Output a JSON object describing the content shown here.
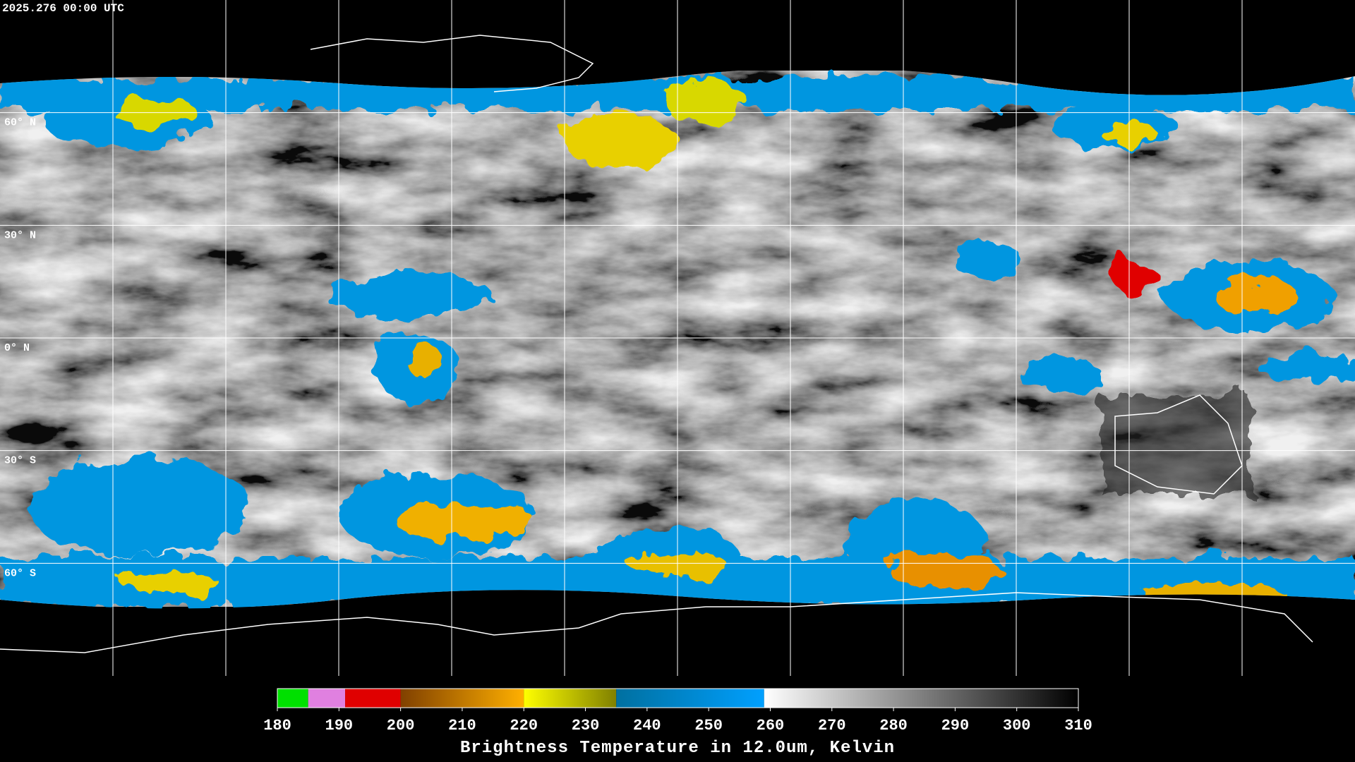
{
  "header": {
    "timestamp": "2025.276 00:00 UTC"
  },
  "map": {
    "lat_lines": [
      {
        "value": 60,
        "label": "60° N"
      },
      {
        "value": 30,
        "label": "30° N"
      },
      {
        "value": 0,
        "label": "0° N"
      },
      {
        "value": -30,
        "label": "30° S"
      },
      {
        "value": -60,
        "label": "60° S"
      }
    ],
    "lat_range": [
      90,
      -90
    ]
  },
  "colorbar": {
    "title": "Brightness Temperature in 12.0um, Kelvin",
    "range": [
      180,
      310
    ],
    "ticks": [
      180,
      190,
      200,
      210,
      220,
      230,
      240,
      250,
      260,
      270,
      280,
      290,
      300,
      310
    ],
    "segments": [
      {
        "from": 180,
        "to": 185,
        "colors": [
          "#00e000",
          "#00e000"
        ]
      },
      {
        "from": 185,
        "to": 191,
        "colors": [
          "#e080e0",
          "#e080e0"
        ]
      },
      {
        "from": 191,
        "to": 200,
        "colors": [
          "#e00000",
          "#e00000"
        ]
      },
      {
        "from": 200,
        "to": 220,
        "colors": [
          "#804000",
          "#ffb000"
        ]
      },
      {
        "from": 220,
        "to": 235,
        "colors": [
          "#ffff00",
          "#808000"
        ]
      },
      {
        "from": 235,
        "to": 259,
        "colors": [
          "#0070a0",
          "#00a0ff"
        ]
      },
      {
        "from": 259,
        "to": 310,
        "colors": [
          "#ffffff",
          "#000000"
        ]
      }
    ]
  }
}
